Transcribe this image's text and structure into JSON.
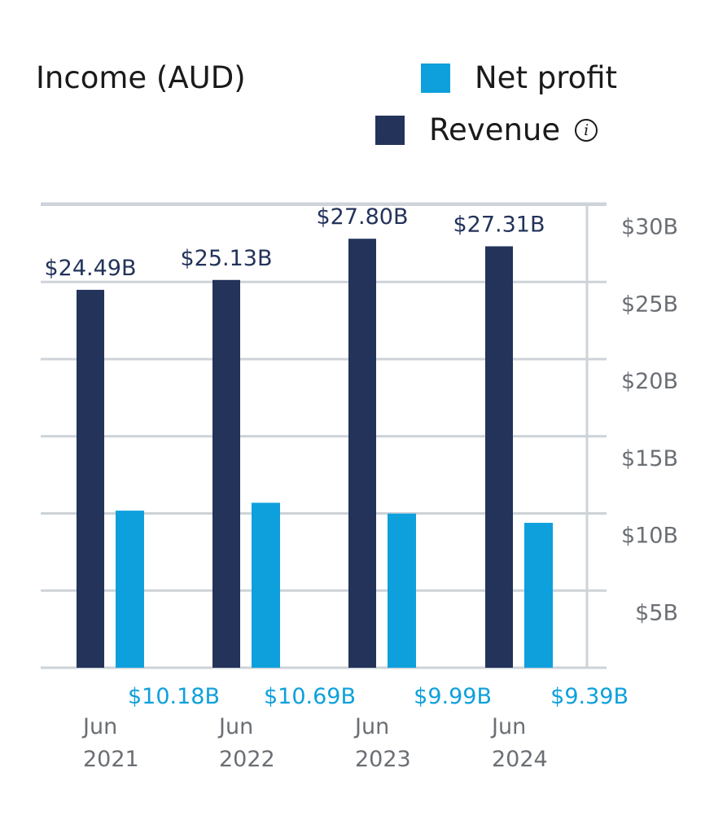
{
  "chart_data": {
    "type": "bar",
    "title": "Income (AUD)",
    "categories": [
      "Jun 2021",
      "Jun 2022",
      "Jun 2023",
      "Jun 2024"
    ],
    "category_lines": [
      [
        "Jun",
        "2021"
      ],
      [
        "Jun",
        "2022"
      ],
      [
        "Jun",
        "2023"
      ],
      [
        "Jun",
        "2024"
      ]
    ],
    "series": [
      {
        "name": "Revenue",
        "color": "#23335a",
        "values": [
          24.49,
          25.13,
          27.8,
          27.31
        ],
        "labels": [
          "$24.49B",
          "$25.13B",
          "$27.80B",
          "$27.31B"
        ]
      },
      {
        "name": "Net profit",
        "color": "#0ea0dc",
        "values": [
          10.18,
          10.69,
          9.99,
          9.39
        ],
        "labels": [
          "$10.18B",
          "$10.69B",
          "$9.99B",
          "$9.39B"
        ]
      }
    ],
    "y_ticks": [
      5,
      10,
      15,
      20,
      25,
      30
    ],
    "y_tick_labels": [
      "$5B",
      "$10B",
      "$15B",
      "$20B",
      "$25B",
      "$30B"
    ],
    "ylim": [
      0,
      30
    ],
    "grid": true,
    "y_axis_position": "right",
    "legend_position": "top-right"
  },
  "colors": {
    "revenue": "#23335a",
    "net_profit": "#0ea0dc",
    "grid": "#cdd3d8",
    "tick_text": "#6b6f74",
    "title_text": "#1a1a1a"
  },
  "legend": {
    "net_profit": "Net profit",
    "revenue": "Revenue",
    "info_icon_glyph": "i"
  }
}
